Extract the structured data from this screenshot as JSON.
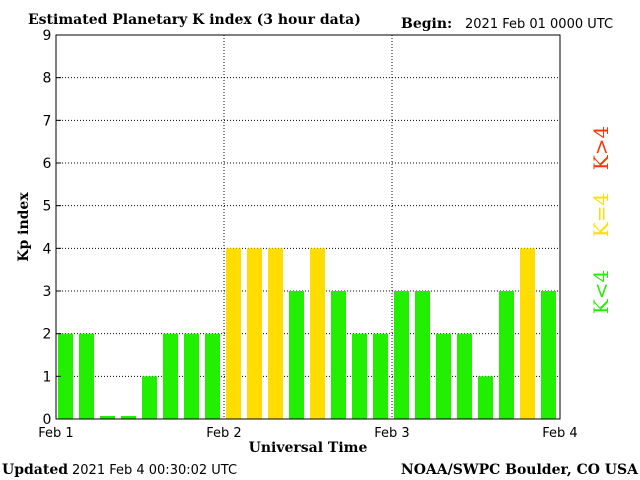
{
  "header": {
    "title": "Estimated Planetary K index (3 hour data)",
    "begin_label": "Begin:",
    "begin_value": "2021 Feb 01 0000 UTC"
  },
  "footer": {
    "updated_label": "Updated",
    "updated_value": "2021 Feb  4 00:30:02 UTC",
    "credit": "NOAA/SWPC Boulder, CO USA"
  },
  "legend": {
    "low": "K<4",
    "mid": "K=4",
    "high": "K>4"
  },
  "colors": {
    "low": "#22ee00",
    "mid": "#ffdd00",
    "high": "#ff3300",
    "axis": "#000000",
    "grid": "#000000"
  },
  "chart_data": {
    "type": "bar",
    "title": "Estimated Planetary K index (3 hour data)",
    "xlabel": "Universal Time",
    "ylabel": "Kp index",
    "ylim": [
      0,
      9
    ],
    "yticks": [
      "0",
      "1",
      "2",
      "3",
      "4",
      "5",
      "6",
      "7",
      "8",
      "9"
    ],
    "xticks": [
      "Feb 1",
      "Feb 2",
      "Feb 3",
      "Feb 4"
    ],
    "grid": true,
    "interval_hours": 3,
    "values": [
      2,
      2,
      0.07,
      0.07,
      1,
      2,
      2,
      2,
      4,
      4,
      4,
      3,
      4,
      3,
      2,
      2,
      3,
      3,
      2,
      2,
      1,
      3,
      4,
      3
    ]
  }
}
